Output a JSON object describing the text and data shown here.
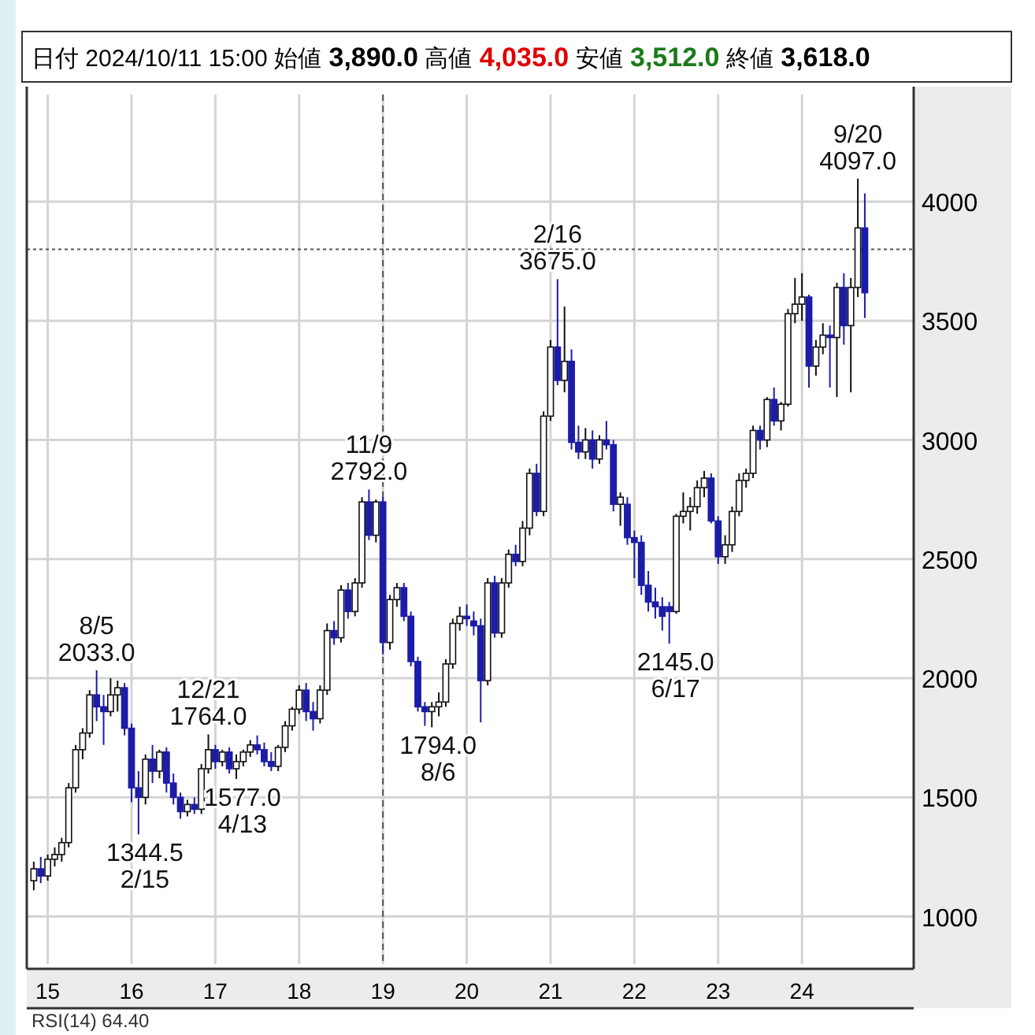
{
  "chart_data": {
    "type": "candlestick",
    "title": "日付 2024/10/11 15:00 始値 3,890.0 高値 4,035.0 安値 3,512.0 終値 3,618.0",
    "colors": [
      "#ffffff",
      "#1c1ca8",
      "#ffffff",
      "#ffffff",
      "#ffffff",
      "#ffffff",
      "#ffffff",
      "#ffffff",
      "#ffffff",
      "#1c1ca8",
      "#1c1ca8",
      "#ffffff",
      "#ffffff",
      "#1c1ca8",
      "#1c1ca8",
      "#1c1ca8",
      "#ffffff",
      "#1c1ca8",
      "#ffffff",
      "#1c1ca8",
      "#1c1ca8",
      "#1c1ca8",
      "#ffffff",
      "#1c1ca8",
      "#ffffff",
      "#ffffff",
      "#1c1ca8",
      "#ffffff",
      "#1c1ca8",
      "#ffffff",
      "#ffffff",
      "#ffffff",
      "#1c1ca8",
      "#1c1ca8",
      "#1c1ca8",
      "#ffffff",
      "#ffffff",
      "#ffffff",
      "#ffffff",
      "#1c1ca8",
      "#1c1ca8",
      "#ffffff",
      "#ffffff",
      "#1c1ca8",
      "#ffffff",
      "#1c1ca8",
      "#ffffff",
      "#ffffff",
      "#1c1ca8",
      "#ffffff",
      "#1c1ca8",
      "#ffffff",
      "#ffffff",
      "#1c1ca8",
      "#1c1ca8",
      "#1c1ca8",
      "#1c1ca8",
      "#ffffff",
      "#ffffff",
      "#ffffff",
      "#ffffff",
      "#ffffff",
      "#1c1ca8",
      "#1c1ca8",
      "#1c1ca8",
      "#ffffff",
      "#1c1ca8",
      "#ffffff",
      "#ffffff",
      "#1c1ca8",
      "#ffffff",
      "#ffffff",
      "#1c1ca8",
      "#ffffff",
      "#ffffff",
      "#1c1ca8",
      "#ffffff",
      "#1c1ca8",
      "#1c1ca8",
      "#ffffff",
      "#1c1ca8",
      "#ffffff",
      "#1c1ca8",
      "#1c1ca8",
      "#ffffff",
      "#1c1ca8",
      "#1c1ca8",
      "#1c1ca8",
      "#1c1ca8",
      "#1c1ca8",
      "#1c1ca8",
      "#1c1ca8",
      "#ffffff",
      "#ffffff",
      "#ffffff",
      "#ffffff",
      "#ffffff",
      "#1c1ca8",
      "#1c1ca8",
      "#ffffff",
      "#ffffff",
      "#ffffff",
      "#ffffff",
      "#ffffff",
      "#1c1ca8",
      "#ffffff",
      "#1c1ca8",
      "#ffffff",
      "#ffffff",
      "#ffffff",
      "#ffffff",
      "#1c1ca8",
      "#ffffff",
      "#ffffff",
      "#1c1ca8",
      "#ffffff",
      "#1c1ca8",
      "#ffffff",
      "#ffffff",
      "#1c1ca8"
    ],
    "x": [
      "2014-11",
      "2014-12",
      "2015-01",
      "2015-02",
      "2015-03",
      "2015-04",
      "2015-05",
      "2015-06",
      "2015-07",
      "2015-08",
      "2015-09",
      "2015-10",
      "2015-11",
      "2015-12",
      "2016-01",
      "2016-02",
      "2016-03",
      "2016-04",
      "2016-05",
      "2016-06",
      "2016-07",
      "2016-08",
      "2016-09",
      "2016-10",
      "2016-11",
      "2016-12",
      "2017-01",
      "2017-02",
      "2017-03",
      "2017-04",
      "2017-05",
      "2017-06",
      "2017-07",
      "2017-08",
      "2017-09",
      "2017-10",
      "2017-11",
      "2017-12",
      "2018-01",
      "2018-02",
      "2018-03",
      "2018-04",
      "2018-05",
      "2018-06",
      "2018-07",
      "2018-08",
      "2018-09",
      "2018-10",
      "2018-11",
      "2018-12",
      "2019-01",
      "2019-02",
      "2019-03",
      "2019-04",
      "2019-05",
      "2019-06",
      "2019-07",
      "2019-08",
      "2019-09",
      "2019-10",
      "2019-11",
      "2019-12",
      "2020-01",
      "2020-02",
      "2020-03",
      "2020-04",
      "2020-05",
      "2020-06",
      "2020-07",
      "2020-08",
      "2020-09",
      "2020-10",
      "2020-11",
      "2020-12",
      "2021-01",
      "2021-02",
      "2021-03",
      "2021-04",
      "2021-05",
      "2021-06",
      "2021-07",
      "2021-08",
      "2021-09",
      "2021-10",
      "2021-11",
      "2021-12",
      "2022-01",
      "2022-02",
      "2022-03",
      "2022-04",
      "2022-05",
      "2022-06",
      "2022-07",
      "2022-08",
      "2022-09",
      "2022-10",
      "2022-11",
      "2022-12",
      "2023-01",
      "2023-02",
      "2023-03",
      "2023-04",
      "2023-05",
      "2023-06",
      "2023-07",
      "2023-08",
      "2023-09",
      "2023-10",
      "2023-11",
      "2023-12",
      "2024-01",
      "2024-02",
      "2024-03",
      "2024-04",
      "2024-05",
      "2024-06",
      "2024-07",
      "2024-08",
      "2024-09",
      "2024-10"
    ],
    "ohlc": [
      [
        1150,
        1230,
        1110,
        1200
      ],
      [
        1200,
        1250,
        1140,
        1170
      ],
      [
        1170,
        1260,
        1150,
        1240
      ],
      [
        1240,
        1290,
        1210,
        1260
      ],
      [
        1260,
        1330,
        1230,
        1310
      ],
      [
        1310,
        1560,
        1290,
        1540
      ],
      [
        1540,
        1720,
        1520,
        1700
      ],
      [
        1700,
        1790,
        1660,
        1770
      ],
      [
        1770,
        1950,
        1750,
        1930
      ],
      [
        1930,
        2033,
        1820,
        1880
      ],
      [
        1880,
        1930,
        1720,
        1860
      ],
      [
        1860,
        2000,
        1840,
        1930
      ],
      [
        1930,
        1990,
        1860,
        1960
      ],
      [
        1960,
        1980,
        1760,
        1790
      ],
      [
        1790,
        1810,
        1480,
        1540
      ],
      [
        1540,
        1610,
        1344.5,
        1500
      ],
      [
        1500,
        1680,
        1470,
        1660
      ],
      [
        1660,
        1720,
        1560,
        1610
      ],
      [
        1610,
        1700,
        1580,
        1690
      ],
      [
        1690,
        1710,
        1520,
        1560
      ],
      [
        1560,
        1600,
        1470,
        1500
      ],
      [
        1500,
        1520,
        1410,
        1440
      ],
      [
        1440,
        1490,
        1420,
        1470
      ],
      [
        1470,
        1500,
        1430,
        1450
      ],
      [
        1450,
        1640,
        1430,
        1620
      ],
      [
        1620,
        1764,
        1600,
        1700
      ],
      [
        1700,
        1720,
        1620,
        1650
      ],
      [
        1650,
        1700,
        1630,
        1690
      ],
      [
        1690,
        1710,
        1600,
        1620
      ],
      [
        1620,
        1680,
        1577,
        1650
      ],
      [
        1650,
        1700,
        1630,
        1690
      ],
      [
        1690,
        1740,
        1670,
        1720
      ],
      [
        1720,
        1760,
        1680,
        1700
      ],
      [
        1700,
        1730,
        1630,
        1650
      ],
      [
        1650,
        1690,
        1610,
        1630
      ],
      [
        1630,
        1720,
        1610,
        1710
      ],
      [
        1710,
        1820,
        1690,
        1800
      ],
      [
        1800,
        1880,
        1780,
        1870
      ],
      [
        1870,
        1970,
        1850,
        1950
      ],
      [
        1950,
        1980,
        1820,
        1860
      ],
      [
        1860,
        1900,
        1780,
        1830
      ],
      [
        1830,
        1970,
        1810,
        1950
      ],
      [
        1950,
        2230,
        1930,
        2200
      ],
      [
        2200,
        2240,
        2140,
        2170
      ],
      [
        2170,
        2390,
        2150,
        2370
      ],
      [
        2370,
        2400,
        2250,
        2280
      ],
      [
        2280,
        2420,
        2260,
        2400
      ],
      [
        2400,
        2760,
        2380,
        2740
      ],
      [
        2740,
        2792,
        2580,
        2600
      ],
      [
        2600,
        2750,
        2570,
        2740
      ],
      [
        2740,
        2760,
        2100,
        2150
      ],
      [
        2150,
        2350,
        2120,
        2330
      ],
      [
        2330,
        2400,
        2300,
        2380
      ],
      [
        2380,
        2400,
        2240,
        2260
      ],
      [
        2260,
        2280,
        2050,
        2070
      ],
      [
        2070,
        2090,
        1860,
        1880
      ],
      [
        1880,
        1900,
        1800,
        1860
      ],
      [
        1860,
        1900,
        1794,
        1880
      ],
      [
        1880,
        1940,
        1840,
        1900
      ],
      [
        1900,
        2080,
        1880,
        2060
      ],
      [
        2060,
        2250,
        2040,
        2230
      ],
      [
        2230,
        2300,
        2200,
        2260
      ],
      [
        2260,
        2310,
        2220,
        2250
      ],
      [
        2240,
        2280,
        2180,
        2220
      ],
      [
        2220,
        2250,
        1815,
        1990
      ],
      [
        1990,
        2420,
        1970,
        2400
      ],
      [
        2400,
        2430,
        2170,
        2190
      ],
      [
        2190,
        2420,
        2170,
        2400
      ],
      [
        2400,
        2540,
        2380,
        2520
      ],
      [
        2520,
        2560,
        2470,
        2490
      ],
      [
        2490,
        2660,
        2470,
        2630
      ],
      [
        2630,
        2880,
        2600,
        2860
      ],
      [
        2860,
        2900,
        2680,
        2700
      ],
      [
        2700,
        3120,
        2680,
        3100
      ],
      [
        3100,
        3420,
        3080,
        3390
      ],
      [
        3390,
        3675,
        3230,
        3250
      ],
      [
        3250,
        3560,
        3200,
        3330
      ],
      [
        3330,
        3380,
        2960,
        2990
      ],
      [
        2990,
        3060,
        2920,
        2950
      ],
      [
        2950,
        3050,
        2920,
        3000
      ],
      [
        3000,
        3040,
        2880,
        2920
      ],
      [
        2920,
        3020,
        2900,
        3000
      ],
      [
        3000,
        3080,
        2960,
        2980
      ],
      [
        2980,
        3000,
        2700,
        2730
      ],
      [
        2730,
        2780,
        2640,
        2760
      ],
      [
        2730,
        2760,
        2560,
        2590
      ],
      [
        2590,
        2620,
        2420,
        2570
      ],
      [
        2570,
        2600,
        2350,
        2390
      ],
      [
        2390,
        2450,
        2280,
        2320
      ],
      [
        2320,
        2380,
        2250,
        2300
      ],
      [
        2300,
        2340,
        2200,
        2260
      ],
      [
        2300,
        2320,
        2145,
        2280
      ],
      [
        2280,
        2690,
        2270,
        2680
      ],
      [
        2680,
        2780,
        2650,
        2700
      ],
      [
        2700,
        2760,
        2620,
        2720
      ],
      [
        2720,
        2830,
        2690,
        2800
      ],
      [
        2800,
        2870,
        2760,
        2840
      ],
      [
        2840,
        2860,
        2650,
        2660
      ],
      [
        2660,
        2680,
        2480,
        2510
      ],
      [
        2510,
        2600,
        2480,
        2560
      ],
      [
        2560,
        2720,
        2530,
        2700
      ],
      [
        2700,
        2860,
        2680,
        2830
      ],
      [
        2830,
        2880,
        2800,
        2860
      ],
      [
        2860,
        3060,
        2840,
        3040
      ],
      [
        3040,
        3060,
        2960,
        3000
      ],
      [
        3000,
        3180,
        2970,
        3170
      ],
      [
        3170,
        3220,
        3060,
        3080
      ],
      [
        3080,
        3160,
        3040,
        3150
      ],
      [
        3150,
        3550,
        3140,
        3530
      ],
      [
        3530,
        3680,
        3490,
        3570
      ],
      [
        3570,
        3700,
        3500,
        3600
      ],
      [
        3600,
        3610,
        3220,
        3310
      ],
      [
        3310,
        3420,
        3270,
        3390
      ],
      [
        3390,
        3490,
        3360,
        3440
      ],
      [
        3440,
        3480,
        3220,
        3430
      ],
      [
        3430,
        3660,
        3180,
        3640
      ],
      [
        3640,
        3700,
        3400,
        3480
      ],
      [
        3480,
        3680,
        3200,
        3640
      ],
      [
        3640,
        4097,
        3600,
        3890
      ],
      [
        3890,
        4035,
        3512,
        3618
      ]
    ],
    "xlim": [
      "2014-10",
      "2025-05"
    ],
    "xticks": [
      {
        "value": "2015-01",
        "label": "15"
      },
      {
        "value": "2016-01",
        "label": "16"
      },
      {
        "value": "2017-01",
        "label": "17"
      },
      {
        "value": "2018-01",
        "label": "18"
      },
      {
        "value": "2019-01",
        "label": "19"
      },
      {
        "value": "2020-01",
        "label": "20"
      },
      {
        "value": "2021-01",
        "label": "21"
      },
      {
        "value": "2022-01",
        "label": "22"
      },
      {
        "value": "2023-01",
        "label": "23"
      },
      {
        "value": "2024-01",
        "label": "24"
      }
    ],
    "ylim": [
      800,
      4450
    ],
    "yticks": [
      1000,
      1500,
      2000,
      2500,
      3000,
      3500,
      4000
    ],
    "grid": true,
    "ref_lines": [
      {
        "axis": "y",
        "value": 3800,
        "line_style": "dotted"
      },
      {
        "axis": "x",
        "value": "2019-01",
        "line_style": "dashed"
      }
    ],
    "annotations": [
      {
        "text": "8/5\n2033.0",
        "x": "2015-08",
        "y": 2033
      },
      {
        "text": "1344.5\n2/15",
        "x": "2016-02",
        "y": 1344.5
      },
      {
        "text": "12/21\n1764.0",
        "x": "2016-12",
        "y": 1764
      },
      {
        "text": "1577.0\n4/13",
        "x": "2017-04",
        "y": 1577
      },
      {
        "text": "11/9\n2792.0",
        "x": "2018-11",
        "y": 2792
      },
      {
        "text": "1794.0\n8/6",
        "x": "2019-08",
        "y": 1794
      },
      {
        "text": "2/16\n3675.0",
        "x": "2021-02",
        "y": 3675
      },
      {
        "text": "2145.0\n6/17",
        "x": "2022-06",
        "y": 2145
      },
      {
        "text": "9/20\n4097.0",
        "x": "2024-09",
        "y": 4097
      },
      "RSI(14)  64.40"
    ]
  }
}
